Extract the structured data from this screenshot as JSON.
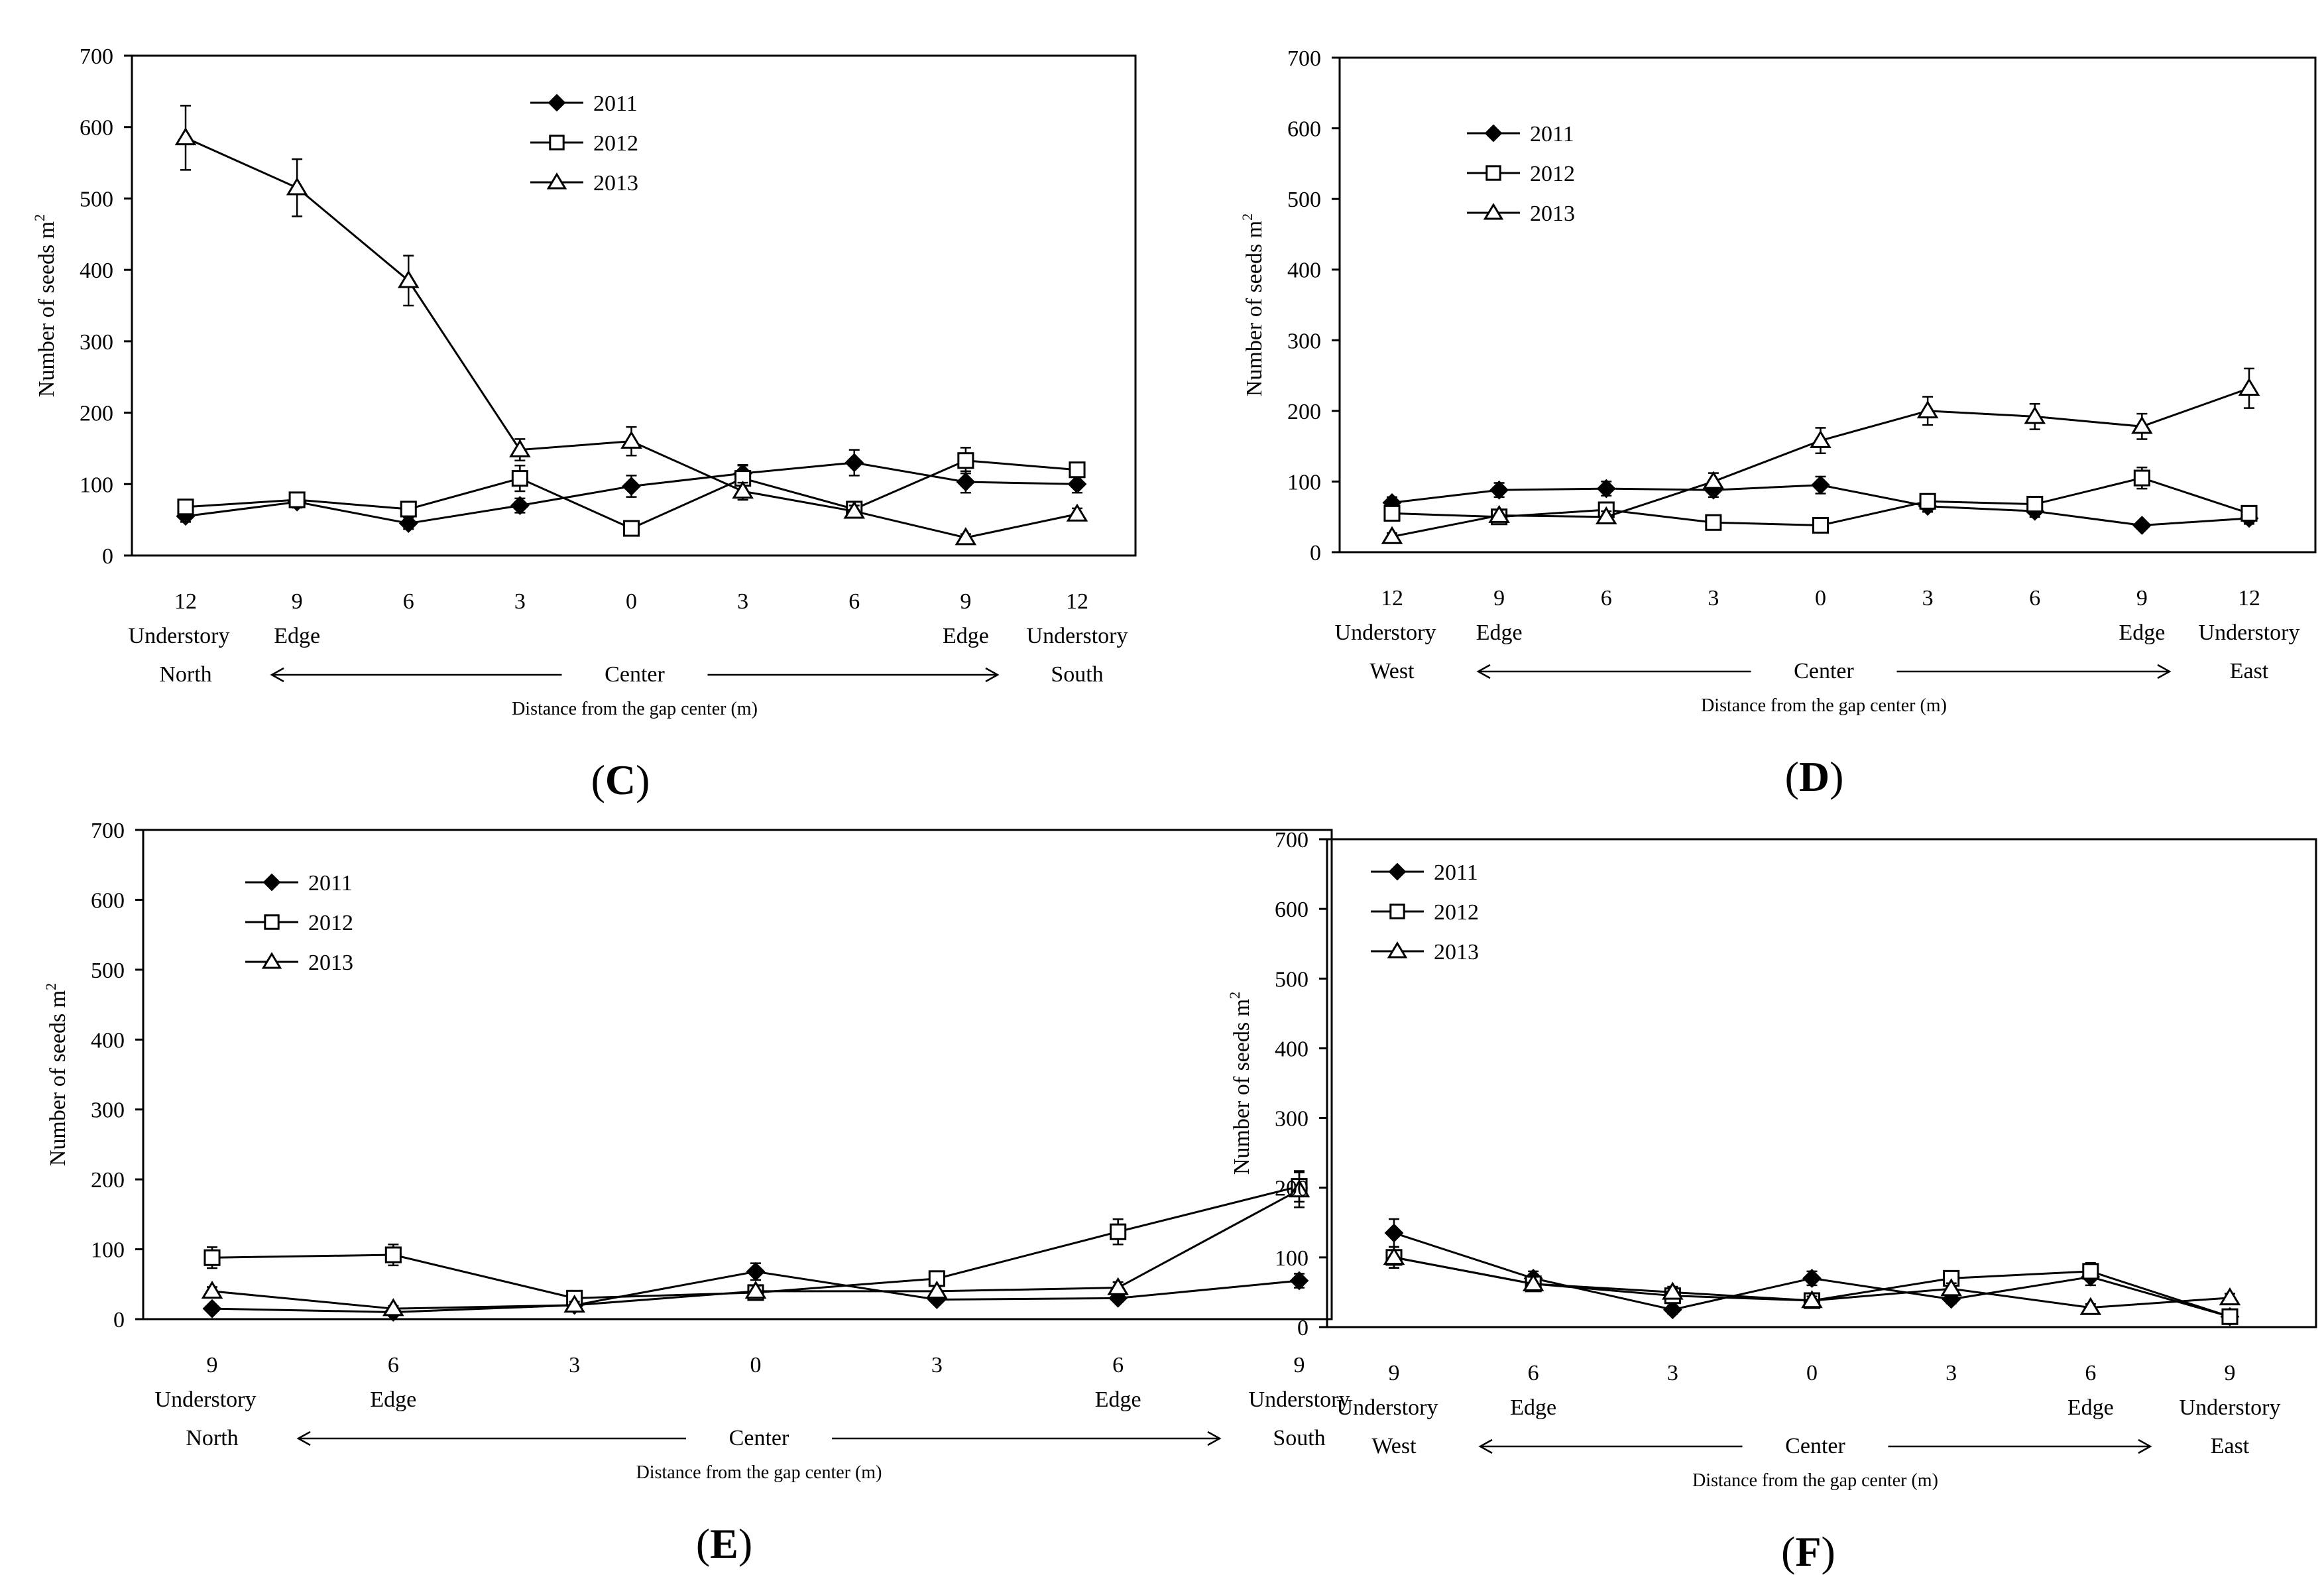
{
  "figure": {
    "series_names": [
      "2011",
      "2012",
      "2013"
    ],
    "series_markers": [
      "diamond-filled",
      "square-open",
      "triangle-open"
    ],
    "colors": {
      "line": "#000000",
      "background": "#ffffff"
    }
  },
  "chart_data": [
    {
      "type": "line",
      "panel_label": "C",
      "ylabel": "Number of seeds m",
      "ylabel_sup": "2",
      "ylim": [
        0,
        700
      ],
      "yticks": [
        "0",
        "100",
        "200",
        "300",
        "400",
        "500",
        "600",
        "700"
      ],
      "xticks": [
        "12",
        "9",
        "6",
        "3",
        "0",
        "3",
        "6",
        "9",
        "12"
      ],
      "x_sublabels": [
        "Understory",
        "Edge",
        "",
        "",
        "",
        "",
        "",
        "Edge",
        "Understory"
      ],
      "direction_left": "North",
      "direction_right": "South",
      "center_label": "Center",
      "xlabel": "Distance from the gap center (m)",
      "legend_position": "top-center",
      "series": [
        {
          "name": "2011",
          "values": [
            55,
            75,
            45,
            70,
            97,
            115,
            130,
            103,
            100
          ],
          "errors": [
            8,
            8,
            8,
            10,
            15,
            12,
            18,
            15,
            12
          ]
        },
        {
          "name": "2012",
          "values": [
            68,
            78,
            65,
            108,
            38,
            108,
            65,
            133,
            120
          ],
          "errors": [
            8,
            10,
            8,
            18,
            8,
            18,
            10,
            18,
            10
          ]
        },
        {
          "name": "2013",
          "values": [
            585,
            515,
            385,
            148,
            160,
            90,
            62,
            25,
            58
          ],
          "errors": [
            45,
            40,
            35,
            15,
            20,
            12,
            8,
            5,
            8
          ]
        }
      ]
    },
    {
      "type": "line",
      "panel_label": "D",
      "ylabel": "Number of seeds m",
      "ylabel_sup": "2",
      "ylim": [
        0,
        700
      ],
      "yticks": [
        "0",
        "100",
        "200",
        "300",
        "400",
        "500",
        "600",
        "700"
      ],
      "xticks": [
        "12",
        "9",
        "6",
        "3",
        "0",
        "3",
        "6",
        "9",
        "12"
      ],
      "x_sublabels": [
        "Understory",
        "Edge",
        "",
        "",
        "",
        "",
        "",
        "Edge",
        "Understory"
      ],
      "direction_left": "West",
      "direction_right": "East",
      "center_label": "Center",
      "xlabel": "Distance from the gap center (m)",
      "legend_position": "top-left",
      "series": [
        {
          "name": "2011",
          "values": [
            70,
            88,
            90,
            88,
            95,
            65,
            58,
            38,
            48
          ],
          "errors": [
            8,
            10,
            10,
            10,
            12,
            8,
            8,
            5,
            8
          ]
        },
        {
          "name": "2012",
          "values": [
            55,
            50,
            60,
            42,
            38,
            72,
            68,
            105,
            55
          ],
          "errors": [
            8,
            8,
            8,
            6,
            6,
            8,
            8,
            15,
            8
          ]
        },
        {
          "name": "2013",
          "values": [
            22,
            52,
            50,
            100,
            158,
            200,
            192,
            178,
            232
          ],
          "errors": [
            5,
            8,
            8,
            12,
            18,
            20,
            18,
            18,
            28
          ]
        }
      ]
    },
    {
      "type": "line",
      "panel_label": "E",
      "ylabel": "Number of seeds m",
      "ylabel_sup": "2",
      "ylim": [
        0,
        700
      ],
      "yticks": [
        "0",
        "100",
        "200",
        "300",
        "400",
        "500",
        "600",
        "700"
      ],
      "xticks": [
        "9",
        "6",
        "3",
        "0",
        "3",
        "6",
        "9"
      ],
      "x_sublabels": [
        "Understory",
        "Edge",
        "",
        "",
        "",
        "Edge",
        "Understory"
      ],
      "direction_left": "North",
      "direction_right": "South",
      "center_label": "Center",
      "xlabel": "Distance from the gap center (m)",
      "legend_position": "top-left",
      "series": [
        {
          "name": "2011",
          "values": [
            15,
            10,
            20,
            68,
            28,
            30,
            55
          ],
          "errors": [
            5,
            4,
            5,
            12,
            5,
            5,
            10
          ]
        },
        {
          "name": "2012",
          "values": [
            88,
            92,
            30,
            38,
            58,
            125,
            190
          ],
          "errors": [
            15,
            15,
            6,
            8,
            10,
            18,
            22
          ]
        },
        {
          "name": "2013",
          "values": [
            40,
            15,
            20,
            40,
            40,
            45,
            185
          ],
          "errors": [
            6,
            4,
            5,
            8,
            8,
            8,
            25
          ]
        }
      ]
    },
    {
      "type": "line",
      "panel_label": "F",
      "ylabel": "Number of seeds m",
      "ylabel_sup": "2",
      "ylim": [
        0,
        700
      ],
      "yticks": [
        "0",
        "100",
        "200",
        "300",
        "400",
        "500",
        "600",
        "700"
      ],
      "xticks": [
        "9",
        "6",
        "3",
        "0",
        "3",
        "6",
        "9"
      ],
      "x_sublabels": [
        "Understory",
        "Edge",
        "",
        "",
        "",
        "Edge",
        "Understory"
      ],
      "direction_left": "West",
      "direction_right": "East",
      "center_label": "Center",
      "xlabel": "Distance from the gap center (m)",
      "legend_position": "top-left",
      "series": [
        {
          "name": "2011",
          "values": [
            135,
            70,
            25,
            70,
            40,
            72,
            15
          ],
          "errors": [
            20,
            10,
            6,
            10,
            6,
            12,
            4
          ]
        },
        {
          "name": "2012",
          "values": [
            100,
            62,
            45,
            38,
            70,
            80,
            15
          ],
          "errors": [
            15,
            10,
            8,
            6,
            10,
            12,
            4
          ]
        },
        {
          "name": "2013",
          "values": [
            100,
            62,
            50,
            38,
            55,
            28,
            42
          ],
          "errors": [
            15,
            10,
            8,
            6,
            8,
            5,
            6
          ]
        }
      ]
    }
  ]
}
